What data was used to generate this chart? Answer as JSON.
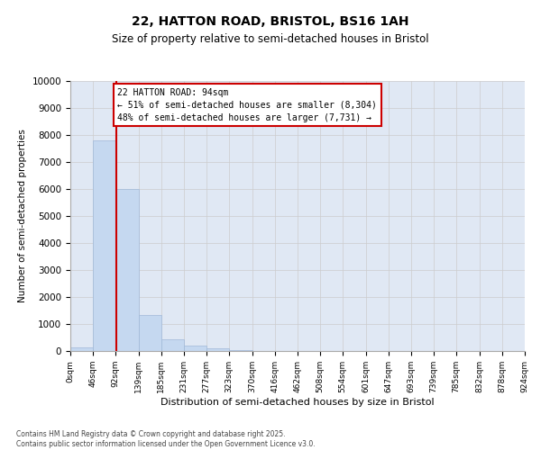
{
  "title1": "22, HATTON ROAD, BRISTOL, BS16 1AH",
  "title2": "Size of property relative to semi-detached houses in Bristol",
  "xlabel": "Distribution of semi-detached houses by size in Bristol",
  "ylabel": "Number of semi-detached properties",
  "bar_bins": [
    0,
    46,
    92,
    139,
    185,
    231,
    277,
    323,
    370,
    416,
    462,
    508,
    554,
    601,
    647,
    693,
    739,
    785,
    832,
    878,
    924
  ],
  "bar_heights": [
    130,
    7800,
    6000,
    1350,
    430,
    200,
    110,
    50,
    0,
    0,
    0,
    0,
    0,
    0,
    0,
    0,
    0,
    0,
    0,
    0
  ],
  "bar_color": "#c5d8f0",
  "bar_edge_color": "#a0b8d8",
  "grid_color": "#cccccc",
  "bg_color": "#e0e8f4",
  "property_size": 94,
  "vline_color": "#cc0000",
  "annotation_title": "22 HATTON ROAD: 94sqm",
  "annotation_line1": "← 51% of semi-detached houses are smaller (8,304)",
  "annotation_line2": "48% of semi-detached houses are larger (7,731) →",
  "annotation_box_color": "#ffffff",
  "annotation_border_color": "#cc0000",
  "ylim": [
    0,
    10000
  ],
  "yticks": [
    0,
    1000,
    2000,
    3000,
    4000,
    5000,
    6000,
    7000,
    8000,
    9000,
    10000
  ],
  "tick_labels": [
    "0sqm",
    "46sqm",
    "92sqm",
    "139sqm",
    "185sqm",
    "231sqm",
    "277sqm",
    "323sqm",
    "370sqm",
    "416sqm",
    "462sqm",
    "508sqm",
    "554sqm",
    "601sqm",
    "647sqm",
    "693sqm",
    "739sqm",
    "785sqm",
    "832sqm",
    "878sqm",
    "924sqm"
  ],
  "footer1": "Contains HM Land Registry data © Crown copyright and database right 2025.",
  "footer2": "Contains public sector information licensed under the Open Government Licence v3.0."
}
